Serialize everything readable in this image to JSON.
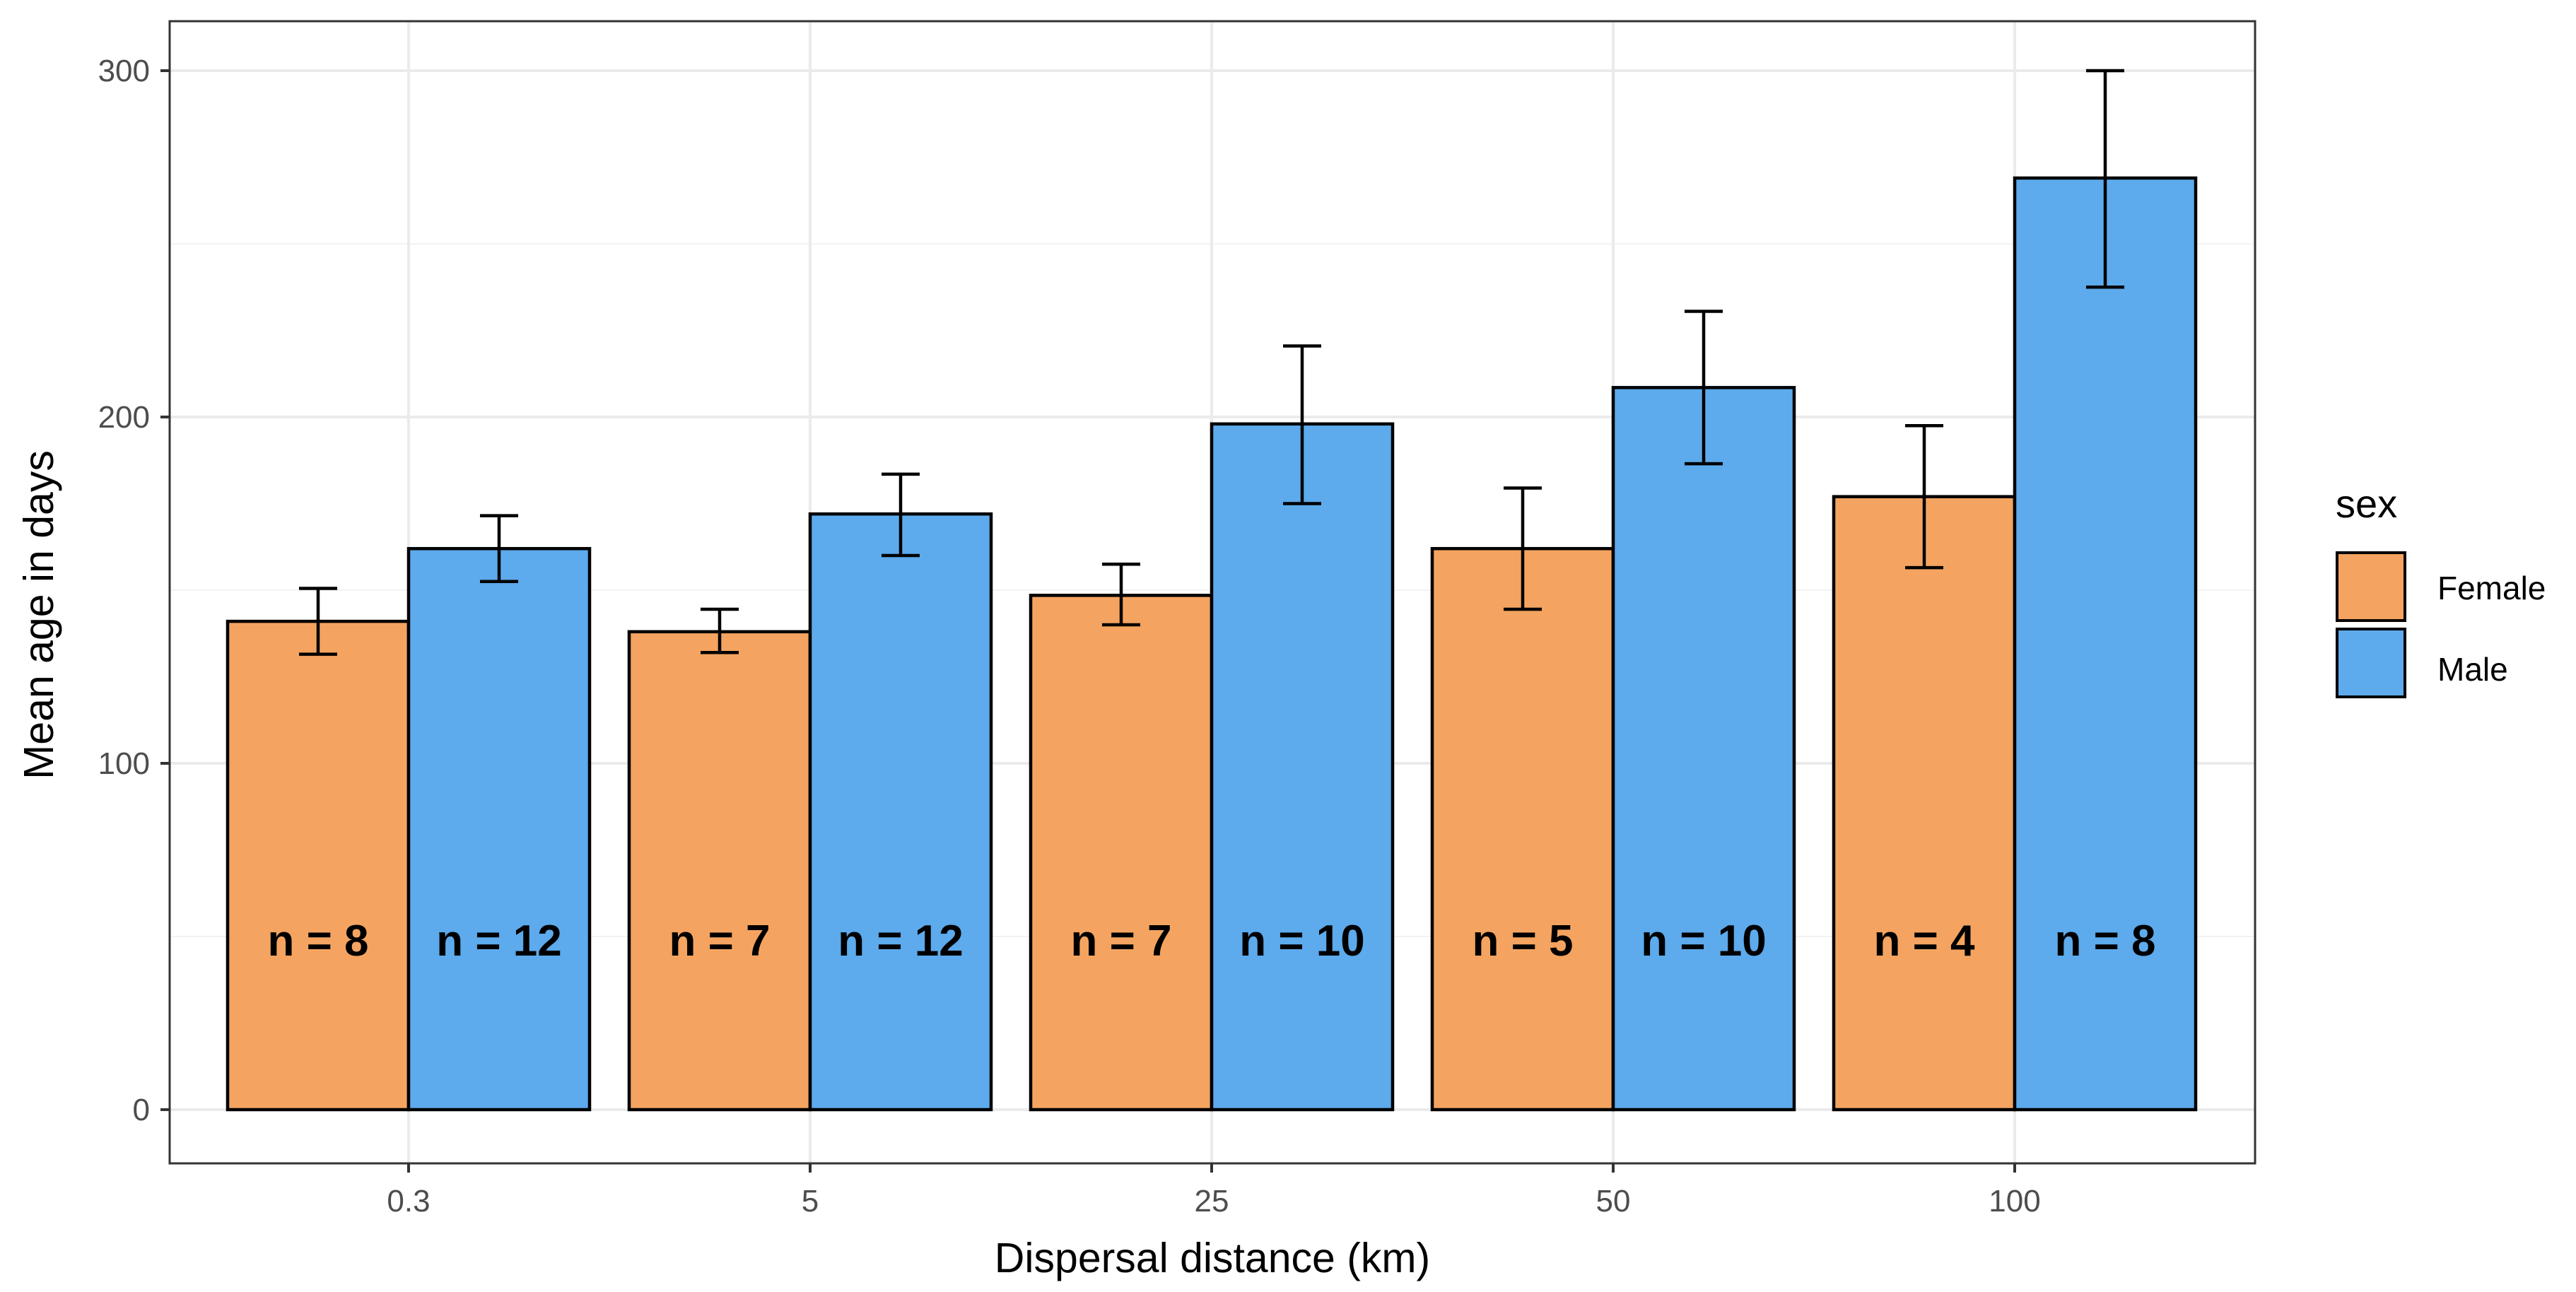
{
  "chart_data": {
    "type": "bar",
    "title": "",
    "xlabel": "Dispersal distance (km)",
    "ylabel": "Mean age in days",
    "categories": [
      "0.3",
      "5",
      "25",
      "50",
      "100"
    ],
    "ylim": [
      -13.5,
      314
    ],
    "yticks": [
      0,
      100,
      200,
      300
    ],
    "grid": true,
    "legend": {
      "title": "sex",
      "position": "right",
      "entries": [
        "Female",
        "Male"
      ]
    },
    "series": [
      {
        "name": "Female",
        "color": "#F4A460",
        "values": [
          141,
          138,
          148.5,
          162,
          177
        ],
        "error_low": [
          131.5,
          132,
          140,
          144.5,
          156.5
        ],
        "error_high": [
          150.5,
          144.5,
          157.5,
          179.5,
          197.5
        ],
        "n_labels": [
          "n = 8",
          "n = 7",
          "n = 7",
          "n = 5",
          "n = 4"
        ]
      },
      {
        "name": "Male",
        "color": "#5DAAEC",
        "values": [
          162,
          172,
          198,
          208.5,
          269
        ],
        "error_low": [
          152.5,
          160,
          175,
          186.5,
          237.5
        ],
        "error_high": [
          171.5,
          183.5,
          220.5,
          230.5,
          300
        ],
        "n_labels": [
          "n = 12",
          "n = 12",
          "n = 10",
          "n = 10",
          "n = 8"
        ]
      }
    ],
    "n_label_y": 49
  }
}
